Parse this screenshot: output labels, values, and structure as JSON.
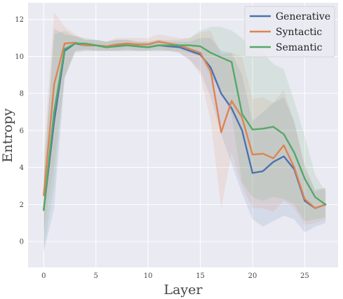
{
  "chart_data": {
    "type": "line",
    "xlabel": "Layer",
    "ylabel": "Entropy",
    "xlim": [
      -1.5,
      28.2
    ],
    "ylim": [
      -1.4,
      12.9
    ],
    "xticks": [
      0,
      5,
      10,
      15,
      20,
      25
    ],
    "yticks": [
      0,
      2,
      4,
      6,
      8,
      10,
      12
    ],
    "grid": true,
    "legend_position": "top-right",
    "x": [
      0,
      1,
      2,
      3,
      4,
      5,
      6,
      7,
      8,
      9,
      10,
      11,
      12,
      13,
      14,
      15,
      16,
      17,
      18,
      19,
      20,
      21,
      22,
      23,
      24,
      25,
      26,
      27
    ],
    "series": [
      {
        "name": "Generative",
        "color": "#4c72b0",
        "values": [
          1.7,
          6.5,
          10.3,
          10.7,
          10.6,
          10.6,
          10.5,
          10.6,
          10.6,
          10.55,
          10.5,
          10.6,
          10.55,
          10.5,
          10.3,
          10.1,
          9.4,
          8.0,
          7.2,
          6.0,
          3.7,
          3.8,
          4.3,
          4.6,
          3.9,
          2.2,
          1.8,
          2.0
        ],
        "lower": [
          -0.6,
          1.8,
          8.8,
          10.2,
          10.3,
          10.3,
          10.3,
          10.3,
          10.3,
          10.3,
          10.3,
          10.3,
          10.3,
          10.2,
          9.8,
          9.2,
          7.8,
          5.8,
          4.2,
          2.6,
          1.2,
          0.8,
          1.1,
          1.4,
          1.2,
          0.5,
          0.8,
          1.0
        ],
        "upper": [
          3.5,
          11.5,
          11.2,
          11.1,
          10.9,
          10.9,
          10.8,
          10.9,
          10.9,
          10.8,
          10.8,
          10.9,
          10.8,
          10.8,
          10.8,
          11.0,
          11.0,
          10.3,
          10.2,
          9.0,
          6.5,
          7.0,
          7.5,
          7.8,
          6.5,
          4.0,
          2.8,
          2.9
        ]
      },
      {
        "name": "Syntactic",
        "color": "#dd8452",
        "values": [
          2.5,
          8.5,
          10.7,
          10.75,
          10.6,
          10.6,
          10.55,
          10.65,
          10.7,
          10.65,
          10.65,
          10.8,
          10.7,
          10.6,
          10.4,
          10.2,
          9.2,
          5.9,
          7.6,
          6.7,
          4.7,
          4.75,
          4.5,
          5.2,
          4.0,
          2.3,
          1.8,
          2.0
        ],
        "lower": [
          0.5,
          4.2,
          8.9,
          10.3,
          10.3,
          10.3,
          10.3,
          10.3,
          10.4,
          10.3,
          10.3,
          10.4,
          10.3,
          10.2,
          9.8,
          9.0,
          6.5,
          1.8,
          4.8,
          3.0,
          1.8,
          1.8,
          1.6,
          2.2,
          1.8,
          0.9,
          1.0,
          1.2
        ],
        "upper": [
          4.8,
          12.4,
          11.6,
          11.2,
          10.9,
          10.9,
          10.8,
          11.0,
          11.0,
          11.0,
          11.0,
          11.2,
          11.1,
          11.0,
          11.0,
          11.3,
          11.4,
          10.1,
          10.2,
          10.0,
          7.7,
          7.8,
          7.5,
          8.2,
          6.4,
          4.2,
          2.7,
          2.9
        ]
      },
      {
        "name": "Semantic",
        "color": "#55a868",
        "values": [
          1.7,
          7.0,
          10.4,
          10.7,
          10.7,
          10.6,
          10.5,
          10.55,
          10.6,
          10.55,
          10.5,
          10.6,
          10.6,
          10.6,
          10.6,
          10.55,
          10.2,
          9.95,
          9.7,
          6.9,
          6.05,
          6.1,
          6.2,
          5.8,
          4.8,
          3.4,
          2.4,
          2.0
        ],
        "lower": [
          -0.4,
          3.0,
          8.9,
          10.3,
          10.4,
          10.3,
          10.3,
          10.3,
          10.3,
          10.3,
          10.3,
          10.3,
          10.3,
          10.3,
          10.2,
          10.0,
          8.9,
          8.2,
          6.8,
          3.2,
          2.4,
          2.2,
          2.4,
          2.3,
          2.0,
          1.1,
          1.2,
          1.3
        ],
        "upper": [
          3.8,
          11.2,
          11.4,
          11.1,
          11.0,
          10.9,
          10.8,
          10.9,
          10.9,
          10.8,
          10.8,
          10.9,
          10.9,
          10.9,
          11.0,
          11.4,
          11.6,
          11.6,
          11.4,
          11.0,
          10.3,
          10.2,
          9.6,
          9.3,
          7.6,
          5.7,
          3.6,
          2.7
        ]
      }
    ]
  }
}
